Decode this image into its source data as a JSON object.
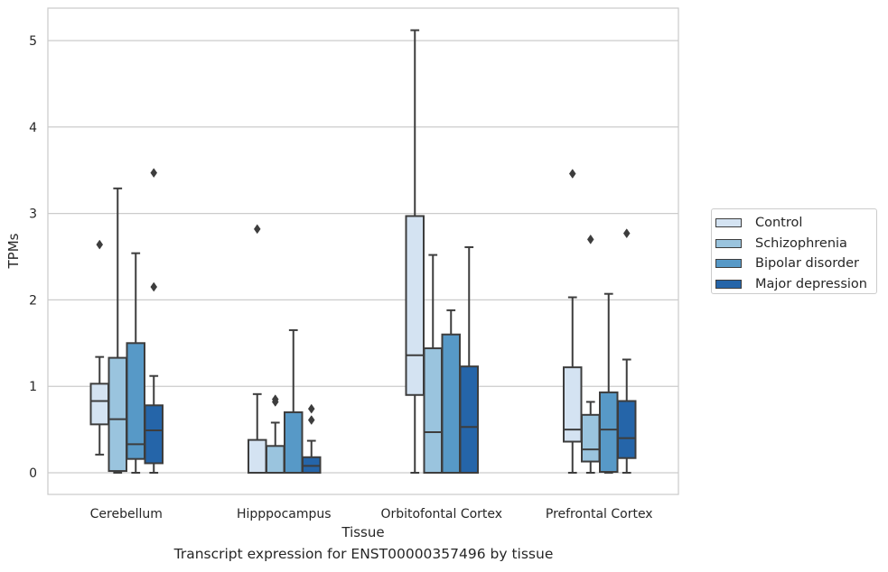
{
  "chart_data": {
    "type": "box",
    "xlabel": "Tissue",
    "ylabel": "TPMs",
    "caption": "Transcript expression for ENST00000357496 by tissue",
    "ylim": [
      -0.25,
      5.38
    ],
    "yticks": [
      "0",
      "1",
      "2",
      "3",
      "4",
      "5"
    ],
    "grid": "horizontal",
    "legend_position": "right",
    "categories": [
      "Cerebellum",
      "Hipppocampus",
      "Orbitofontal Cortex",
      "Prefrontal Cortex"
    ],
    "series": [
      {
        "name": "Control",
        "color": "#d4e3f2",
        "boxes": [
          {
            "whislo": 0.21,
            "q1": 0.56,
            "med": 0.83,
            "q3": 1.03,
            "whishi": 1.34,
            "fliers": [
              2.64
            ]
          },
          {
            "whislo": 0.0,
            "q1": 0.0,
            "med": 0.0,
            "q3": 0.38,
            "whishi": 0.91,
            "fliers": [
              2.82
            ]
          },
          {
            "whislo": 0.0,
            "q1": 0.9,
            "med": 1.36,
            "q3": 2.97,
            "whishi": 5.12,
            "fliers": []
          },
          {
            "whislo": 0.0,
            "q1": 0.36,
            "med": 0.5,
            "q3": 1.22,
            "whishi": 2.03,
            "fliers": [
              3.46
            ]
          }
        ]
      },
      {
        "name": "Schizophrenia",
        "color": "#9ac4de",
        "boxes": [
          {
            "whislo": 0.0,
            "q1": 0.02,
            "med": 0.62,
            "q3": 1.33,
            "whishi": 3.29,
            "fliers": []
          },
          {
            "whislo": 0.0,
            "q1": 0.0,
            "med": 0.0,
            "q3": 0.31,
            "whishi": 0.58,
            "fliers": [
              0.82,
              0.85
            ]
          },
          {
            "whislo": 0.0,
            "q1": 0.0,
            "med": 0.47,
            "q3": 1.44,
            "whishi": 2.52,
            "fliers": []
          },
          {
            "whislo": 0.0,
            "q1": 0.13,
            "med": 0.27,
            "q3": 0.67,
            "whishi": 0.82,
            "fliers": [
              2.7
            ]
          }
        ]
      },
      {
        "name": "Bipolar disorder",
        "color": "#5799c7",
        "boxes": [
          {
            "whislo": 0.0,
            "q1": 0.16,
            "med": 0.33,
            "q3": 1.5,
            "whishi": 2.54,
            "fliers": []
          },
          {
            "whislo": 0.0,
            "q1": 0.0,
            "med": 0.0,
            "q3": 0.7,
            "whishi": 1.65,
            "fliers": []
          },
          {
            "whislo": 0.0,
            "q1": 0.0,
            "med": 0.0,
            "q3": 1.6,
            "whishi": 1.88,
            "fliers": []
          },
          {
            "whislo": 0.0,
            "q1": 0.01,
            "med": 0.5,
            "q3": 0.93,
            "whishi": 2.07,
            "fliers": []
          }
        ]
      },
      {
        "name": "Major depression",
        "color": "#2565a9",
        "boxes": [
          {
            "whislo": 0.0,
            "q1": 0.11,
            "med": 0.49,
            "q3": 0.78,
            "whishi": 1.12,
            "fliers": [
              2.15,
              3.47
            ]
          },
          {
            "whislo": 0.0,
            "q1": 0.0,
            "med": 0.08,
            "q3": 0.18,
            "whishi": 0.37,
            "fliers": [
              0.61,
              0.74
            ]
          },
          {
            "whislo": 0.0,
            "q1": 0.0,
            "med": 0.53,
            "q3": 1.23,
            "whishi": 2.61,
            "fliers": []
          },
          {
            "whislo": 0.0,
            "q1": 0.17,
            "med": 0.4,
            "q3": 0.83,
            "whishi": 1.31,
            "fliers": [
              2.77
            ]
          }
        ]
      }
    ]
  }
}
